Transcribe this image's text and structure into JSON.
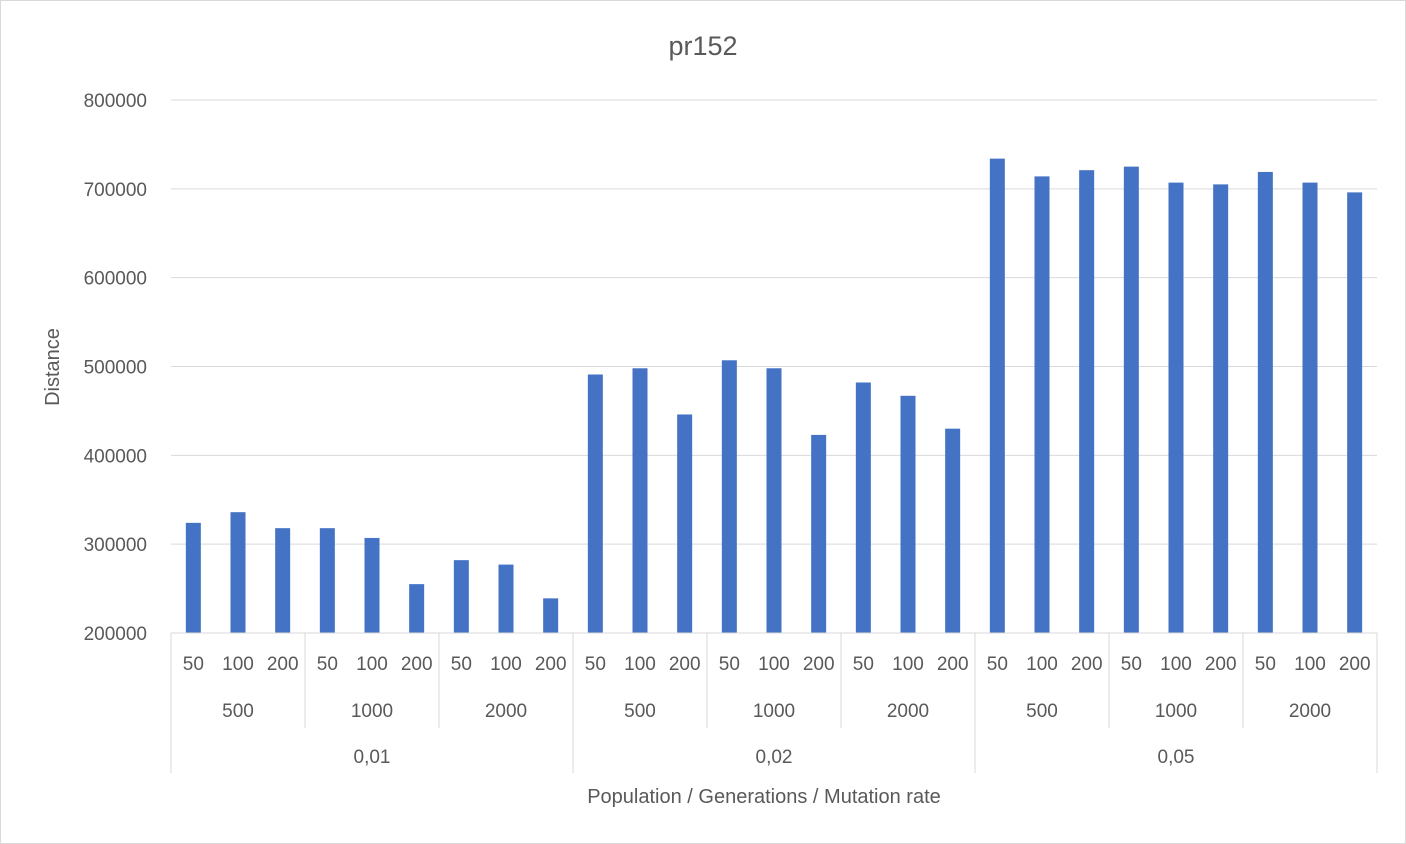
{
  "chart_data": {
    "type": "bar",
    "title": "pr152",
    "xlabel": "Population / Generations / Mutation rate",
    "ylabel": "Distance",
    "ylim": [
      200000,
      800000
    ],
    "yticks": [
      200000,
      300000,
      400000,
      500000,
      600000,
      700000,
      800000
    ],
    "grid": true,
    "legend": "none",
    "colors": {
      "bar": "#4472C4",
      "grid": "#d9d9d9",
      "text": "#595959"
    },
    "category_levels": {
      "population": [
        "50",
        "100",
        "200"
      ],
      "generations": [
        "500",
        "1000",
        "2000"
      ],
      "mutation_rate": [
        "0,01",
        "0,02",
        "0,05"
      ]
    },
    "categories": [
      "50 / 500 / 0,01",
      "100 / 500 / 0,01",
      "200 / 500 / 0,01",
      "50 / 1000 / 0,01",
      "100 / 1000 / 0,01",
      "200 / 1000 / 0,01",
      "50 / 2000 / 0,01",
      "100 / 2000 / 0,01",
      "200 / 2000 / 0,01",
      "50 / 500 / 0,02",
      "100 / 500 / 0,02",
      "200 / 500 / 0,02",
      "50 / 1000 / 0,02",
      "100 / 1000 / 0,02",
      "200 / 1000 / 0,02",
      "50 / 2000 / 0,02",
      "100 / 2000 / 0,02",
      "200 / 2000 / 0,02",
      "50 / 500 / 0,05",
      "100 / 500 / 0,05",
      "200 / 500 / 0,05",
      "50 / 1000 / 0,05",
      "100 / 1000 / 0,05",
      "200 / 1000 / 0,05",
      "50 / 2000 / 0,05",
      "100 / 2000 / 0,05",
      "200 / 2000 / 0,05"
    ],
    "values": [
      324000,
      336000,
      318000,
      318000,
      307000,
      255000,
      282000,
      277000,
      239000,
      491000,
      498000,
      446000,
      507000,
      498000,
      423000,
      482000,
      467000,
      430000,
      734000,
      714000,
      721000,
      725000,
      707000,
      705000,
      719000,
      707000,
      696000
    ]
  }
}
